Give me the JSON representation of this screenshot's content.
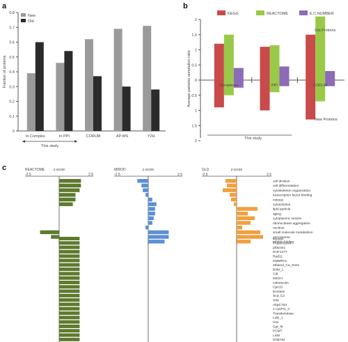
{
  "panel_labels": {
    "a": "a",
    "b": "b",
    "c": "c"
  },
  "colors": {
    "new": "#9a9a9a",
    "old": "#2b2b2b",
    "kegg": "#c94a4a",
    "reactome": "#9ac94a",
    "ec": "#8c6bb8",
    "reactome_bar": "#5e7a2e",
    "mirod": "#5b8fd6",
    "gld": "#f0a040"
  },
  "chart_data": [
    {
      "type": "bar",
      "panel": "a",
      "ylabel": "Fraction of proteins",
      "ylim": [
        0,
        0.8
      ],
      "yticks": [
        "0",
        "0.1",
        "0.2",
        "0.3",
        "0.4",
        "0.5",
        "0.6",
        "0.7",
        "0.8"
      ],
      "categories": [
        "In Complex",
        "In PPI",
        "CORUM",
        "AP-MS",
        "Y2H"
      ],
      "series": [
        {
          "name": "New",
          "values": [
            0.39,
            0.46,
            0.62,
            0.69,
            0.71
          ]
        },
        {
          "name": "Old",
          "values": [
            0.6,
            0.54,
            0.37,
            0.3,
            0.28
          ]
        }
      ],
      "legend": "top-left",
      "annotation": "This study"
    },
    {
      "type": "bar",
      "panel": "b",
      "ylabel": "Average pairwise annotation ratio",
      "ylim": [
        -2,
        2
      ],
      "yticks": [
        "2",
        "1.5",
        "1",
        "0.5",
        "0",
        "0.5",
        "1",
        "1.5",
        "2"
      ],
      "categories": [
        "Complexes",
        "PPI",
        "CORUM"
      ],
      "series": [
        {
          "name": "KEGG",
          "values": [
            1.2,
            1.1,
            1.5
          ],
          "neg_values": [
            -0.9,
            -1.0,
            -1.3
          ]
        },
        {
          "name": "REACTOME",
          "values": [
            1.5,
            1.15,
            2.1
          ],
          "neg_values": [
            -0.5,
            -0.4,
            -0.7
          ]
        },
        {
          "name": "E.C NUMBER",
          "values": [
            0.4,
            0.45,
            0.3
          ],
          "neg_values": [
            -0.25,
            -0.2,
            -0.2
          ]
        }
      ],
      "legend": "top",
      "annotations": [
        "Old Proteins",
        "New Proteins",
        "This study"
      ]
    },
    {
      "type": "bar",
      "panel": "c",
      "orientation": "horizontal",
      "panels": [
        {
          "name": "REACTOME",
          "xlabel": "z-score",
          "xlim": [
            -2.5,
            2.5
          ]
        },
        {
          "name": "MIROD",
          "xlabel": "z-score",
          "xlim": [
            -2.5,
            2.5
          ]
        },
        {
          "name": "GLD",
          "xlabel": "z-score",
          "xlim": [
            -2.5,
            2.5
          ]
        }
      ],
      "group1_labels": [
        "cell division",
        "cell differentiation",
        "cytoskeleton organization",
        "transcription factor binding",
        "mitosis",
        "cytosolution",
        "lipid particle",
        "aging",
        "cytoplasmic vesicle",
        "ribonuclease aggregation",
        "nucleus",
        "small molecule metabolism",
        "peroxisome",
        "protein folding"
      ],
      "group1_values": {
        "reactome": [
          1.6,
          1.6,
          1.5,
          1.2,
          1.2,
          1.0,
          0,
          0,
          0,
          0,
          0,
          -1.4,
          -0.6,
          0
        ],
        "mirod": [
          -0.8,
          -0.5,
          -0.4,
          -0.2,
          0.3,
          0.6,
          0.5,
          0.5,
          0.4,
          0.3,
          -0.2,
          1.5,
          1.5,
          1.2
        ],
        "gld": [
          -0.8,
          -0.7,
          -1.0,
          -0.5,
          -0.4,
          -0.2,
          1.5,
          0.8,
          1.3,
          1.0,
          0.4,
          1.7,
          1.9,
          1.0
        ]
      },
      "group2_labels": [
        "Myosin",
        "Tropomyosin",
        "pfdoxin1",
        "DUF1477",
        "Rad11",
        "HMMPA1",
        "ethanol_Ca_trans",
        "B3M_1",
        "Cdt",
        "DEGH",
        "calreticulin",
        "Cpn10",
        "Enolase",
        "Scd_C2",
        "SIM",
        "AbpC754",
        "1-cysPrx_C",
        "Transketolase",
        "Lolb_1",
        "HSI",
        "Gpt_fh",
        "PCMT",
        "LSM",
        "DSEAM"
      ],
      "group2_values": {
        "reactome": [
          1.5,
          1.5,
          1.5,
          1.5,
          1.5,
          1.5,
          1.5,
          1.5,
          1.5,
          1.5,
          1.5,
          1.5,
          1.5,
          1.5,
          1.5,
          1.5,
          1.5,
          1.5,
          1.5,
          1.5,
          1.5,
          1.5,
          1.5,
          1.5
        ],
        "mirod": [
          0,
          0,
          0,
          0,
          0,
          0,
          0,
          0,
          0,
          0,
          0,
          0,
          0,
          0,
          0,
          0,
          0,
          0,
          0,
          0,
          0,
          0,
          0,
          0
        ],
        "gld": [
          0,
          0,
          0,
          0,
          0,
          0,
          0,
          0,
          0,
          0,
          0,
          0,
          0,
          0,
          0,
          0,
          0,
          0,
          0,
          0,
          0,
          0,
          0,
          0
        ]
      }
    }
  ]
}
